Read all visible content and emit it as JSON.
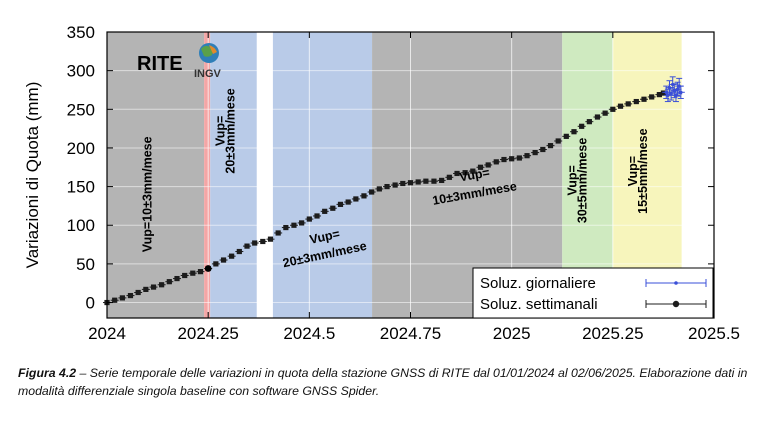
{
  "chart_data": {
    "type": "scatter",
    "title": "",
    "site_label": "RITE",
    "logo_text": "INGV",
    "xlabel": "",
    "ylabel": "Variazioni di Quota (mm)",
    "xlim": [
      2024,
      2025.5
    ],
    "ylim": [
      -20,
      350
    ],
    "x_ticks": [
      2024,
      2024.25,
      2024.5,
      2024.75,
      2025,
      2025.25,
      2025.5
    ],
    "x_tick_labels": [
      "2024",
      "2024.25",
      "2024.5",
      "2024.75",
      "2025",
      "2025.25",
      "2025.5"
    ],
    "y_ticks": [
      0,
      50,
      100,
      150,
      200,
      250,
      300,
      350
    ],
    "y_tick_labels": [
      "0",
      "50",
      "100",
      "150",
      "200",
      "250",
      "300",
      "350"
    ],
    "regions": [
      {
        "x0": 2024.0,
        "x1": 2024.24,
        "color": "#b4b4b4"
      },
      {
        "x0": 2024.24,
        "x1": 2024.255,
        "color": "#f4a6a6"
      },
      {
        "x0": 2024.255,
        "x1": 2024.37,
        "color": "#b9cbe8"
      },
      {
        "x0": 2024.41,
        "x1": 2024.655,
        "color": "#b9cbe8"
      },
      {
        "x0": 2024.655,
        "x1": 2025.125,
        "color": "#b4b4b4"
      },
      {
        "x0": 2025.125,
        "x1": 2025.25,
        "color": "#cfeac0"
      },
      {
        "x0": 2025.25,
        "x1": 2025.42,
        "color": "#f7f5bc"
      }
    ],
    "annotations": [
      {
        "text": "Vup=10±3mm/mese",
        "x": 2024.11,
        "y": 140,
        "rotation": -90
      },
      {
        "text": "Vup=",
        "x": 2024.29,
        "y": 222,
        "rotation": -90
      },
      {
        "text": "20±3mm/mese",
        "x": 2024.315,
        "y": 222,
        "rotation": -90
      },
      {
        "text": "Vup=",
        "x": 2024.54,
        "y": 80,
        "rotation": -12
      },
      {
        "text": "20±3mm/mese",
        "x": 2024.54,
        "y": 57,
        "rotation": -12
      },
      {
        "text": "Vup=",
        "x": 2024.91,
        "y": 160,
        "rotation": -10
      },
      {
        "text": "10±3mm/mese",
        "x": 2024.91,
        "y": 136,
        "rotation": -10
      },
      {
        "text": "Vup=",
        "x": 2025.16,
        "y": 158,
        "rotation": -90
      },
      {
        "text": "30±5mm/mese",
        "x": 2025.185,
        "y": 158,
        "rotation": -90
      },
      {
        "text": "Vup=",
        "x": 2025.31,
        "y": 170,
        "rotation": -90
      },
      {
        "text": "15±5mm/mese",
        "x": 2025.335,
        "y": 170,
        "rotation": -90
      }
    ],
    "legend_position": "bottom-right",
    "series": [
      {
        "name": "Soluz. giornaliere",
        "color": "#3a4fd8",
        "x": [
          2025.382,
          2025.386,
          2025.39,
          2025.394,
          2025.398,
          2025.402,
          2025.406,
          2025.41,
          2025.414,
          2025.418
        ],
        "y": [
          272,
          268,
          278,
          270,
          282,
          274,
          268,
          276,
          280,
          272
        ],
        "err": [
          8,
          8,
          9,
          8,
          10,
          9,
          8,
          9,
          10,
          8
        ]
      },
      {
        "name": "Soluz. settimanali",
        "color": "#1c1c1c",
        "x": [
          2024.0,
          2024.019,
          2024.038,
          2024.058,
          2024.077,
          2024.096,
          2024.115,
          2024.135,
          2024.154,
          2024.173,
          2024.192,
          2024.212,
          2024.231,
          2024.25,
          2024.269,
          2024.288,
          2024.308,
          2024.327,
          2024.346,
          2024.365,
          2024.385,
          2024.404,
          2024.423,
          2024.442,
          2024.462,
          2024.481,
          2024.5,
          2024.519,
          2024.538,
          2024.558,
          2024.577,
          2024.596,
          2024.615,
          2024.635,
          2024.654,
          2024.673,
          2024.692,
          2024.712,
          2024.731,
          2024.75,
          2024.769,
          2024.788,
          2024.808,
          2024.827,
          2024.846,
          2024.865,
          2024.885,
          2024.904,
          2024.923,
          2024.942,
          2024.962,
          2024.981,
          2025.0,
          2025.019,
          2025.038,
          2025.058,
          2025.077,
          2025.096,
          2025.115,
          2025.135,
          2025.154,
          2025.173,
          2025.192,
          2025.212,
          2025.231,
          2025.25,
          2025.269,
          2025.288,
          2025.308,
          2025.327,
          2025.346,
          2025.365,
          2025.375
        ],
        "y": [
          0,
          3,
          6,
          9,
          13,
          17,
          20,
          23,
          27,
          31,
          35,
          38,
          40,
          44,
          50,
          55,
          60,
          66,
          73,
          77,
          79,
          82,
          90,
          97,
          100,
          103,
          108,
          112,
          118,
          122,
          127,
          130,
          134,
          138,
          143,
          147,
          150,
          152,
          154,
          155,
          156,
          157,
          157,
          158,
          162,
          167,
          168,
          170,
          175,
          178,
          182,
          185,
          186,
          187,
          190,
          194,
          198,
          203,
          209,
          215,
          221,
          228,
          234,
          240,
          245,
          250,
          254,
          257,
          260,
          263,
          266,
          269,
          271
        ],
        "err": [
          3,
          3,
          3,
          3,
          3,
          3,
          3,
          3,
          3,
          3,
          3,
          3,
          3,
          3,
          3,
          3,
          3,
          3,
          3,
          3,
          3,
          3,
          3,
          3,
          3,
          3,
          3,
          3,
          3,
          3,
          3,
          3,
          3,
          3,
          3,
          3,
          3,
          3,
          3,
          3,
          3,
          3,
          3,
          3,
          3,
          3,
          3,
          3,
          3,
          3,
          3,
          3,
          3,
          3,
          3,
          3,
          3,
          3,
          3,
          3,
          3,
          3,
          3,
          3,
          3,
          3,
          3,
          3,
          3,
          3,
          3,
          3,
          3
        ]
      }
    ]
  },
  "caption": {
    "label": "Figura 4.2",
    "text": " – Serie temporale delle variazioni in quota della stazione GNSS di RITE dal 01/01/2024 al 02/06/2025. Elaborazione dati in modalità differenziale singola baseline con software GNSS Spider."
  }
}
